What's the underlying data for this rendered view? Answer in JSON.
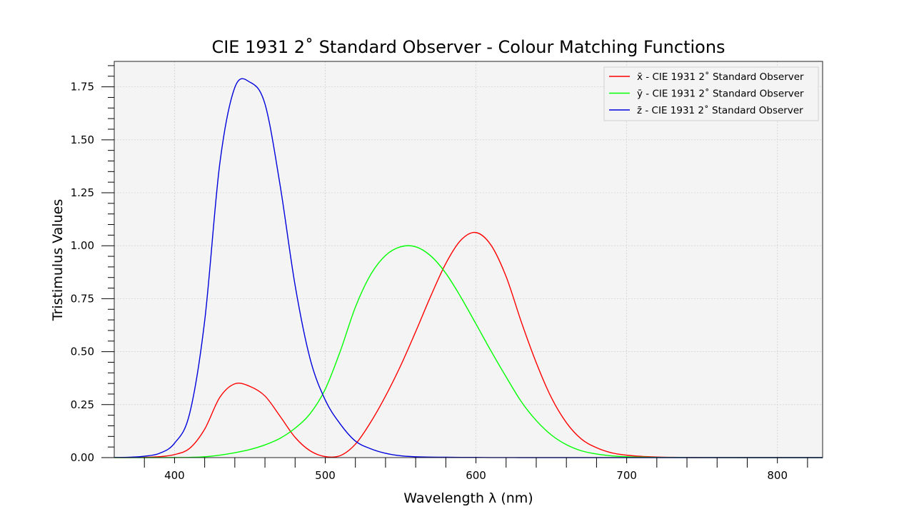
{
  "chart_data": {
    "type": "line",
    "title": "CIE 1931 2$^\\circ$ Standard Observer - Colour Matching Functions",
    "title_text": "CIE 1931 2˚ Standard Observer - Colour Matching Functions",
    "xlabel": "Wavelength λ (nm)",
    "ylabel": "Tristimulus Values",
    "xlim": [
      360,
      830
    ],
    "ylim": [
      0,
      1.87
    ],
    "x_ticks": [
      400,
      500,
      600,
      700,
      800
    ],
    "x_tick_labels": [
      "400",
      "500",
      "600",
      "700",
      "800"
    ],
    "y_ticks": [
      0,
      0.25,
      0.5,
      0.75,
      1.0,
      1.25,
      1.5,
      1.75
    ],
    "y_tick_labels": [
      "0.00",
      "0.25",
      "0.50",
      "0.75",
      "1.00",
      "1.25",
      "1.50",
      "1.75"
    ],
    "grid": true,
    "legend_position": "top-right",
    "background": "#f4f4f4",
    "x": [
      360,
      370,
      380,
      390,
      400,
      410,
      420,
      430,
      440,
      450,
      460,
      470,
      480,
      490,
      500,
      510,
      520,
      530,
      540,
      550,
      560,
      570,
      580,
      590,
      600,
      610,
      620,
      630,
      640,
      650,
      660,
      670,
      680,
      690,
      700,
      710,
      720,
      730,
      740,
      750,
      760,
      770,
      780,
      790,
      800,
      810,
      820,
      830
    ],
    "series": [
      {
        "name": "x̄ - CIE 1931 2˚ Standard Observer",
        "color": "#ff0000",
        "values": [
          0.0001,
          0.0004,
          0.0014,
          0.0042,
          0.0143,
          0.0435,
          0.1344,
          0.2839,
          0.3483,
          0.3362,
          0.2908,
          0.1954,
          0.0956,
          0.032,
          0.0049,
          0.0093,
          0.0633,
          0.1655,
          0.2904,
          0.4334,
          0.5945,
          0.7621,
          0.9163,
          1.0263,
          1.0622,
          1.0026,
          0.8544,
          0.6424,
          0.4479,
          0.2835,
          0.1649,
          0.0874,
          0.0468,
          0.0227,
          0.0114,
          0.0058,
          0.0029,
          0.0014,
          0.0007,
          0.0003,
          0.0002,
          0.0001,
          0.0,
          0.0,
          0.0,
          0.0,
          0.0,
          0.0
        ]
      },
      {
        "name": "ȳ - CIE 1931 2˚ Standard Observer",
        "color": "#00ff00",
        "values": [
          0.0,
          0.0,
          0.0,
          0.0001,
          0.0004,
          0.0012,
          0.004,
          0.0116,
          0.023,
          0.038,
          0.06,
          0.091,
          0.139,
          0.208,
          0.323,
          0.503,
          0.71,
          0.862,
          0.954,
          0.995,
          0.995,
          0.952,
          0.87,
          0.757,
          0.631,
          0.503,
          0.381,
          0.265,
          0.175,
          0.107,
          0.061,
          0.032,
          0.017,
          0.0082,
          0.0041,
          0.0021,
          0.001,
          0.0005,
          0.0003,
          0.0001,
          0.0001,
          0.0,
          0.0,
          0.0,
          0.0,
          0.0,
          0.0,
          0.0
        ]
      },
      {
        "name": "z̄ - CIE 1931 2˚ Standard Observer",
        "color": "#0000dd",
        "values": [
          0.0006,
          0.0019,
          0.0065,
          0.0201,
          0.0679,
          0.2074,
          0.6456,
          1.3856,
          1.7471,
          1.7721,
          1.6692,
          1.2876,
          0.813,
          0.4652,
          0.272,
          0.1582,
          0.0782,
          0.0422,
          0.0203,
          0.0087,
          0.0039,
          0.0021,
          0.0017,
          0.0011,
          0.0008,
          0.0003,
          0.0002,
          0.0,
          0.0,
          0.0,
          0.0,
          0.0,
          0.0,
          0.0,
          0.0,
          0.0,
          0.0,
          0.0,
          0.0,
          0.0,
          0.0,
          0.0,
          0.0,
          0.0,
          0.0,
          0.0,
          0.0,
          0.0
        ]
      }
    ]
  }
}
